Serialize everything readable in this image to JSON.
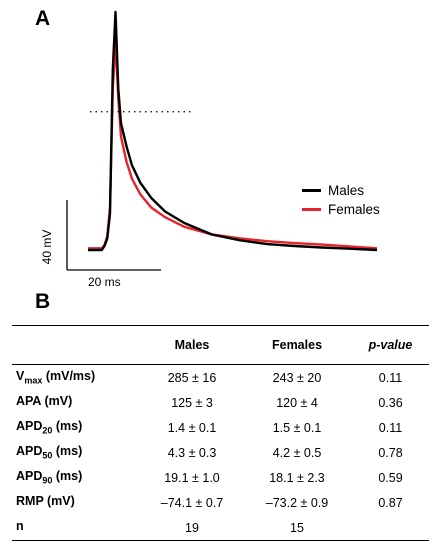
{
  "panel_a_label": "A",
  "panel_b_label": "B",
  "colors": {
    "males": "#000000",
    "females": "#e8232a"
  },
  "chart_data": {
    "type": "line",
    "series": [
      {
        "name": "Males",
        "color": "#000000",
        "x": [
          0,
          5,
          6,
          7,
          8,
          9,
          10,
          11,
          12,
          14,
          16,
          19,
          23,
          28,
          35,
          45,
          55,
          65,
          75,
          85,
          95,
          105
        ],
        "y": [
          -74.1,
          -74.1,
          -72,
          -68,
          -55,
          20,
          50,
          10,
          -8,
          -20,
          -30,
          -39,
          -47,
          -54,
          -60,
          -66,
          -69,
          -71,
          -72,
          -72.8,
          -73.4,
          -74.1
        ]
      },
      {
        "name": "Females",
        "color": "#e8232a",
        "x": [
          0,
          5,
          6,
          7,
          8,
          9,
          10,
          11,
          12,
          14,
          16,
          19,
          23,
          28,
          35,
          45,
          55,
          65,
          75,
          85,
          95,
          105
        ],
        "y": [
          -73.2,
          -73.2,
          -71.5,
          -67,
          -52,
          10,
          35,
          5,
          -15,
          -28,
          -37,
          -45,
          -52,
          -57,
          -62,
          -66,
          -68,
          -69.5,
          -70.5,
          -71.3,
          -72.2,
          -73.2
        ]
      }
    ],
    "threshold_line": -2,
    "scale_bar": {
      "y_label": "40 mV",
      "x_label": "20 ms"
    },
    "legend": [
      "Males",
      "Females"
    ]
  },
  "table": {
    "headers": [
      "",
      "Males",
      "Females",
      "p-value"
    ],
    "rows": [
      {
        "label": "V",
        "sub": "max",
        "suffix": " (mV/ms)",
        "males": "285 ± 16",
        "females": "243 ± 20",
        "p": "0.11"
      },
      {
        "label": "APA (mV)",
        "sub": "",
        "suffix": "",
        "males": "125 ± 3",
        "females": "120 ± 4",
        "p": "0.36"
      },
      {
        "label": "APD",
        "sub": "20",
        "suffix": " (ms)",
        "males": "1.4 ± 0.1",
        "females": "1.5 ± 0.1",
        "p": "0.11"
      },
      {
        "label": "APD",
        "sub": "50",
        "suffix": " (ms)",
        "males": "4.3 ± 0.3",
        "females": "4.2 ± 0.5",
        "p": "0.78"
      },
      {
        "label": "APD",
        "sub": "90",
        "suffix": " (ms)",
        "males": "19.1 ± 1.0",
        "females": "18.1 ± 2.3",
        "p": "0.59"
      },
      {
        "label": "RMP (mV)",
        "sub": "",
        "suffix": "",
        "males": "–74.1 ± 0.7",
        "females": "–73.2 ± 0.9",
        "p": "0.87"
      },
      {
        "label": "n",
        "sub": "",
        "suffix": "",
        "males": "19",
        "females": "15",
        "p": ""
      }
    ]
  }
}
